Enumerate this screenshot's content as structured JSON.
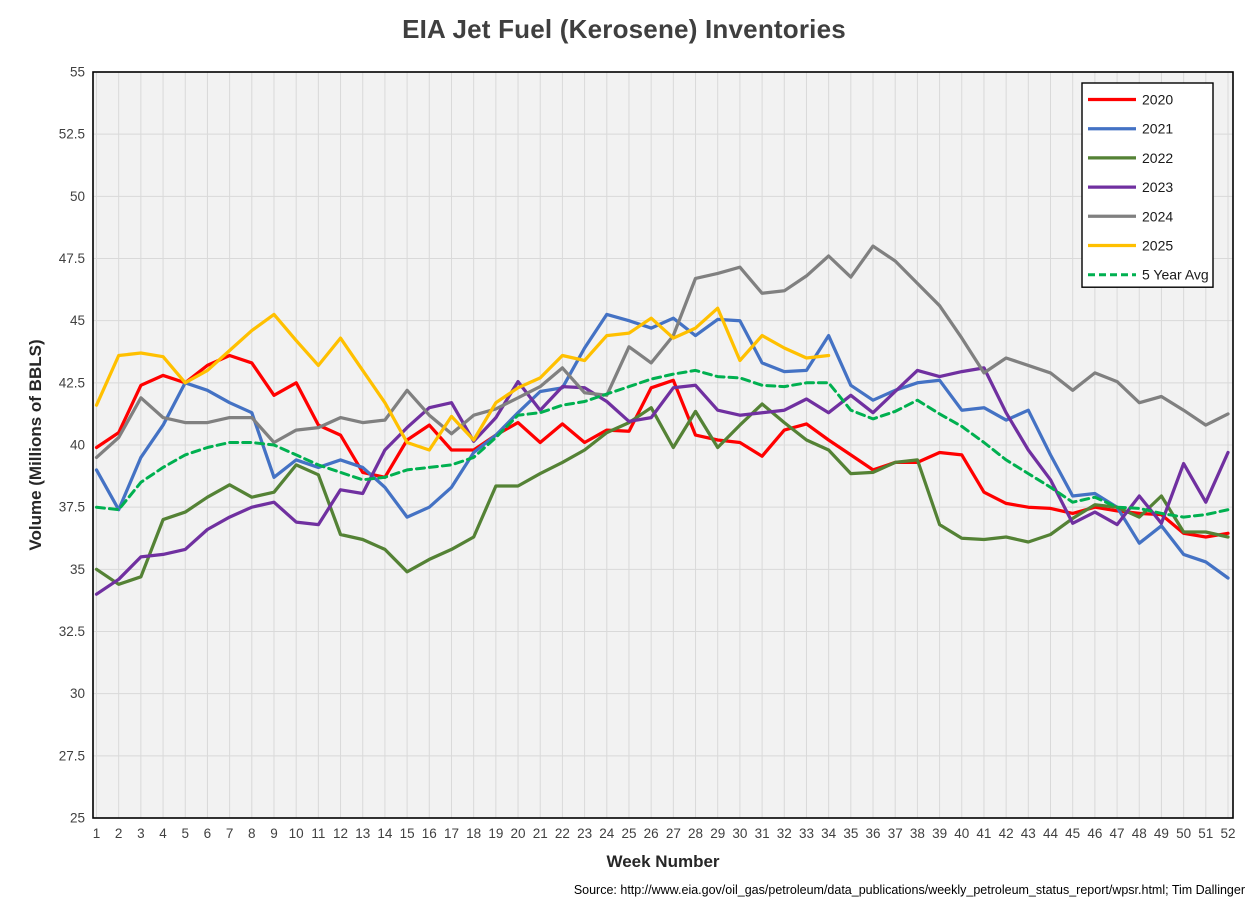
{
  "chart_data": {
    "type": "line",
    "title": "EIA Jet Fuel (Kerosene) Inventories",
    "xlabel": "Week Number",
    "ylabel": "Volume (Millions of BBLS)",
    "source": "Source: http://www.eia.gov/oil_gas/petroleum/data_publications/weekly_petroleum_status_report/wpsr.html; Tim Dallinger",
    "xlim": [
      1,
      52
    ],
    "ylim": [
      25,
      55
    ],
    "grid": true,
    "legend_position": "top-right",
    "plot_background": "#F2F2F2",
    "gridline_color": "#D9D9D9",
    "border_color": "#000000",
    "x_ticks": [
      "1",
      "2",
      "3",
      "4",
      "5",
      "6",
      "7",
      "8",
      "9",
      "10",
      "11",
      "12",
      "13",
      "14",
      "15",
      "16",
      "17",
      "18",
      "19",
      "20",
      "21",
      "22",
      "23",
      "24",
      "25",
      "26",
      "27",
      "28",
      "29",
      "30",
      "31",
      "32",
      "33",
      "34",
      "35",
      "36",
      "37",
      "38",
      "39",
      "40",
      "41",
      "42",
      "43",
      "44",
      "45",
      "46",
      "47",
      "48",
      "49",
      "50",
      "51",
      "52"
    ],
    "y_ticks": [
      "25",
      "27.5",
      "30",
      "32.5",
      "35",
      "37.5",
      "40",
      "42.5",
      "45",
      "47.5",
      "50",
      "52.5",
      "55"
    ],
    "y_tick_values": [
      25,
      27.5,
      30,
      32.5,
      35,
      37.5,
      40,
      42.5,
      45,
      47.5,
      50,
      52.5,
      55
    ],
    "series": [
      {
        "name": "2020",
        "color": "#FF0000",
        "dashed": false,
        "values": [
          39.9,
          40.5,
          42.4,
          42.8,
          42.5,
          43.2,
          43.6,
          43.3,
          42.0,
          42.5,
          40.8,
          40.4,
          38.9,
          38.7,
          40.2,
          40.8,
          39.8,
          39.8,
          40.4,
          40.9,
          40.1,
          40.85,
          40.1,
          40.6,
          40.55,
          42.3,
          42.6,
          40.4,
          40.2,
          40.1,
          39.55,
          40.6,
          40.85,
          40.2,
          39.6,
          39.0,
          39.3,
          39.3,
          39.7,
          39.6,
          38.1,
          37.65,
          37.5,
          37.45,
          37.25,
          37.5,
          37.35,
          37.25,
          37.2,
          36.45,
          36.3,
          36.45
        ]
      },
      {
        "name": "2021",
        "color": "#4472C4",
        "dashed": false,
        "values": [
          39.0,
          37.4,
          39.5,
          40.8,
          42.5,
          42.2,
          41.7,
          41.3,
          38.7,
          39.4,
          39.1,
          39.4,
          39.1,
          38.3,
          37.1,
          37.5,
          38.3,
          39.7,
          40.4,
          41.3,
          42.15,
          42.3,
          43.9,
          45.25,
          45.0,
          44.7,
          45.1,
          44.4,
          45.05,
          45.0,
          43.3,
          42.95,
          43.0,
          44.4,
          42.4,
          41.8,
          42.2,
          42.5,
          42.6,
          41.4,
          41.5,
          41.0,
          41.4,
          39.6,
          37.95,
          38.05,
          37.5,
          36.05,
          36.75,
          35.6,
          35.3,
          34.65
        ]
      },
      {
        "name": "2022",
        "color": "#548235",
        "dashed": false,
        "values": [
          35.0,
          34.4,
          34.7,
          37.0,
          37.3,
          37.9,
          38.4,
          37.9,
          38.1,
          39.2,
          38.8,
          36.4,
          36.2,
          35.8,
          34.9,
          35.4,
          35.8,
          36.3,
          38.35,
          38.35,
          38.85,
          39.3,
          39.8,
          40.5,
          40.9,
          41.5,
          39.9,
          41.35,
          39.9,
          40.8,
          41.65,
          40.9,
          40.2,
          39.8,
          38.85,
          38.9,
          39.3,
          39.4,
          36.8,
          36.25,
          36.2,
          36.3,
          36.1,
          36.4,
          37.05,
          37.6,
          37.5,
          37.1,
          37.95,
          36.5,
          36.5,
          36.3
        ]
      },
      {
        "name": "2023",
        "color": "#7030A0",
        "dashed": false,
        "values": [
          34.0,
          34.6,
          35.5,
          35.6,
          35.8,
          36.6,
          37.1,
          37.5,
          37.7,
          36.9,
          36.8,
          38.2,
          38.05,
          39.8,
          40.7,
          41.5,
          41.7,
          40.15,
          41.1,
          42.55,
          41.4,
          42.35,
          42.3,
          41.75,
          40.95,
          41.1,
          42.3,
          42.4,
          41.4,
          41.2,
          41.3,
          41.4,
          41.85,
          41.3,
          42.0,
          41.3,
          42.15,
          43.0,
          42.75,
          42.95,
          43.1,
          41.3,
          39.8,
          38.6,
          36.85,
          37.3,
          36.8,
          37.95,
          36.85,
          39.25,
          37.7,
          39.7
        ]
      },
      {
        "name": "2024",
        "color": "#808080",
        "dashed": false,
        "values": [
          39.5,
          40.3,
          41.9,
          41.1,
          40.9,
          40.9,
          41.1,
          41.1,
          40.1,
          40.6,
          40.7,
          41.1,
          40.9,
          41.0,
          42.2,
          41.2,
          40.45,
          41.2,
          41.45,
          41.9,
          42.35,
          43.1,
          42.1,
          42.0,
          43.95,
          43.3,
          44.4,
          46.7,
          46.9,
          47.15,
          46.1,
          46.2,
          46.8,
          47.6,
          46.75,
          48.0,
          47.4,
          46.5,
          45.6,
          44.3,
          42.9,
          43.5,
          43.2,
          42.9,
          42.2,
          42.9,
          42.55,
          41.7,
          41.95,
          41.4,
          40.8,
          41.25
        ]
      },
      {
        "name": "2025",
        "color": "#FFC000",
        "dashed": false,
        "values": [
          41.6,
          43.6,
          43.7,
          43.55,
          42.5,
          43.0,
          43.8,
          44.6,
          45.25,
          44.2,
          43.2,
          44.3,
          43.0,
          41.7,
          40.1,
          39.8,
          41.15,
          40.2,
          41.7,
          42.3,
          42.7,
          43.6,
          43.4,
          44.4,
          44.5,
          45.1,
          44.3,
          44.7,
          45.5,
          43.4,
          44.4,
          43.9,
          43.5,
          43.6
        ]
      },
      {
        "name": "5 Year Avg",
        "color": "#00B050",
        "dashed": true,
        "values": [
          37.5,
          37.4,
          38.5,
          39.1,
          39.6,
          39.9,
          40.1,
          40.1,
          40.0,
          39.6,
          39.2,
          38.9,
          38.6,
          38.7,
          39.0,
          39.1,
          39.2,
          39.5,
          40.3,
          41.2,
          41.3,
          41.6,
          41.75,
          42.05,
          42.35,
          42.65,
          42.85,
          43.0,
          42.75,
          42.7,
          42.4,
          42.35,
          42.5,
          42.5,
          41.4,
          41.05,
          41.35,
          41.8,
          41.25,
          40.75,
          40.1,
          39.4,
          38.85,
          38.3,
          37.7,
          37.9,
          37.5,
          37.45,
          37.25,
          37.1,
          37.2,
          37.4
        ]
      }
    ]
  }
}
